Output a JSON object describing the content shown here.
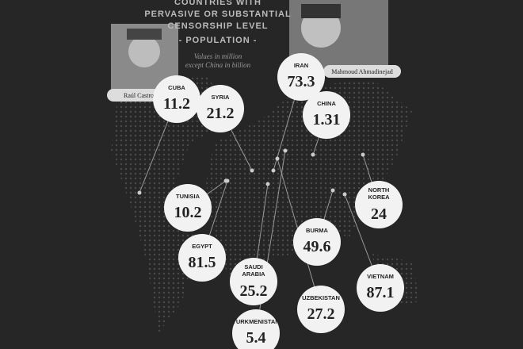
{
  "header": {
    "title_lines": [
      "COUNTRIES WITH",
      "PERVASIVE OR SUBSTANTIAL",
      "CENSORSHIP LEVEL"
    ],
    "subtitle": "- POPULATION -",
    "note_lines": [
      "Values in million",
      "except China in billion"
    ]
  },
  "captions": {
    "left": "Raúl Castro",
    "right": "Mahmoud Ahmadinejad"
  },
  "countries": [
    {
      "name": "CUBA",
      "value": 11.2
    },
    {
      "name": "SYRIA",
      "value": 21.2
    },
    {
      "name": "IRAN",
      "value": 73.3
    },
    {
      "name": "CHINA",
      "value": 1.31
    },
    {
      "name": "TUNISIA",
      "value": 10.2
    },
    {
      "name": "NORTH KOREA",
      "value": 24
    },
    {
      "name": "EGYPT",
      "value": 81.5
    },
    {
      "name": "BURMA",
      "value": 49.6
    },
    {
      "name": "SAUDI ARABIA",
      "value": 25.2
    },
    {
      "name": "VIETNAM",
      "value": 87.1
    },
    {
      "name": "UZBEKISTAN",
      "value": 27.2
    },
    {
      "name": "TURKMENISTAN",
      "value": 5.4
    }
  ]
}
